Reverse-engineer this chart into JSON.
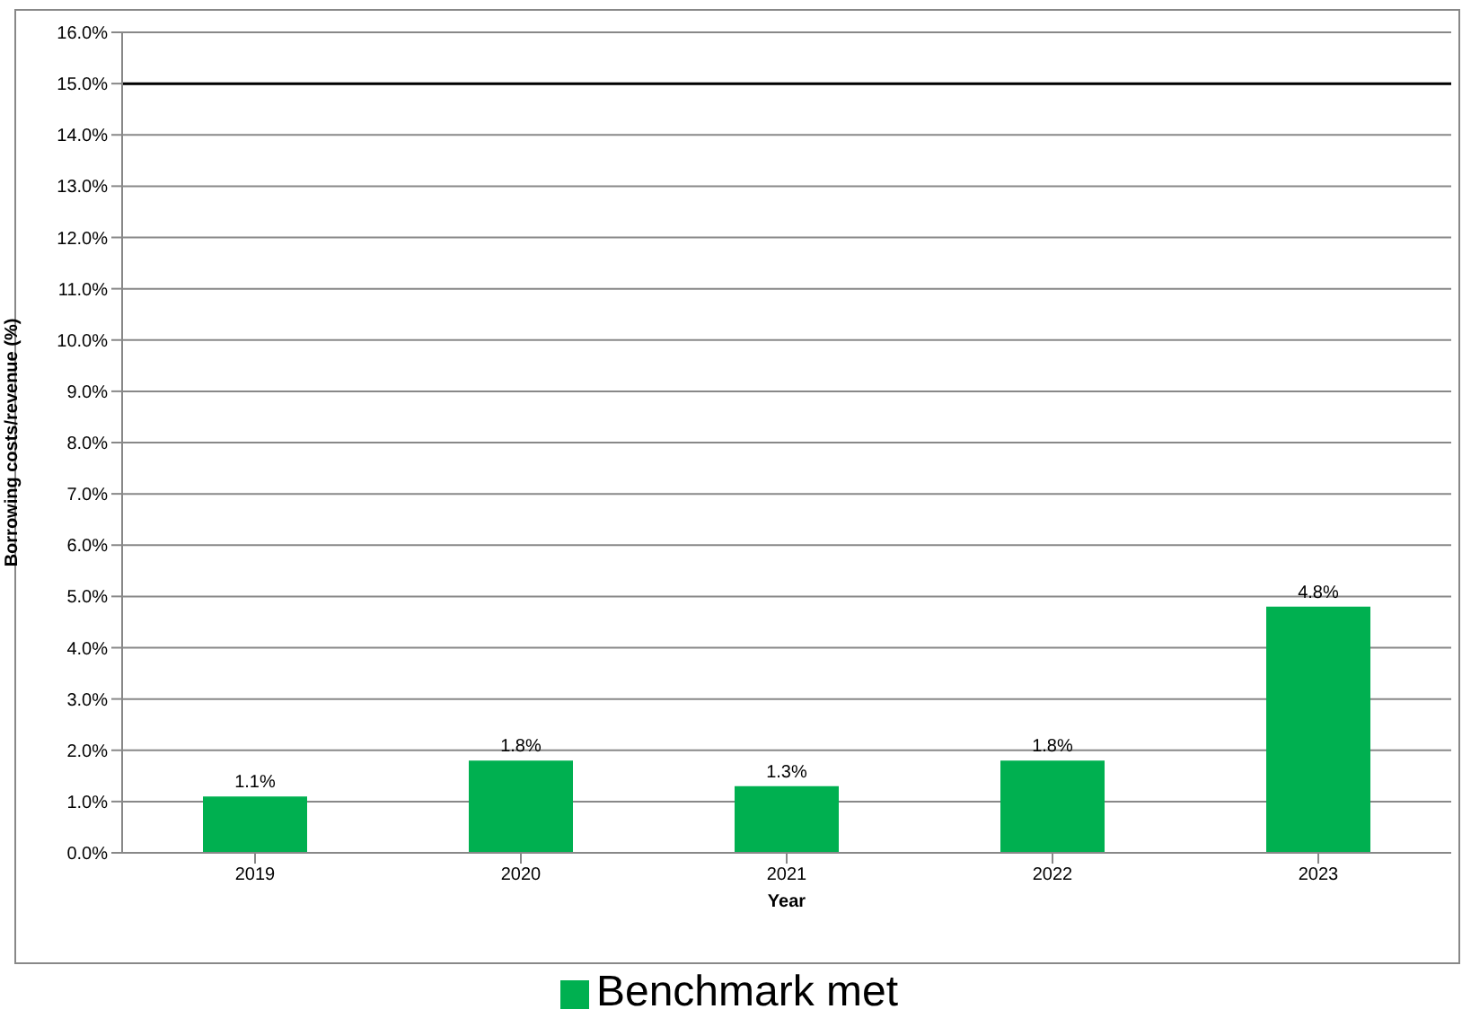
{
  "chart_data": {
    "type": "bar",
    "xlabel": "Year",
    "ylabel": "Borrowing costs/revenue (%)",
    "categories": [
      "2019",
      "2020",
      "2021",
      "2022",
      "2023"
    ],
    "series": [
      {
        "name": "Benchmark met",
        "color": "#00b050",
        "values": [
          1.1,
          1.8,
          1.3,
          1.8,
          4.8
        ],
        "value_labels": [
          "1.1%",
          "1.8%",
          "1.3%",
          "1.8%",
          "4.8%"
        ]
      }
    ],
    "ylim": [
      0,
      16
    ],
    "yticks": [
      {
        "value": 0,
        "label": "0.0%"
      },
      {
        "value": 1,
        "label": "1.0%"
      },
      {
        "value": 2,
        "label": "2.0%"
      },
      {
        "value": 3,
        "label": "3.0%"
      },
      {
        "value": 4,
        "label": "4.0%"
      },
      {
        "value": 5,
        "label": "5.0%"
      },
      {
        "value": 6,
        "label": "6.0%"
      },
      {
        "value": 7,
        "label": "7.0%"
      },
      {
        "value": 8,
        "label": "8.0%"
      },
      {
        "value": 9,
        "label": "9.0%"
      },
      {
        "value": 10,
        "label": "10.0%"
      },
      {
        "value": 11,
        "label": "11.0%"
      },
      {
        "value": 12,
        "label": "12.0%"
      },
      {
        "value": 13,
        "label": "13.0%"
      },
      {
        "value": 14,
        "label": "14.0%"
      },
      {
        "value": 15,
        "label": "15.0%"
      },
      {
        "value": 16,
        "label": "16.0%"
      }
    ],
    "ref_lines": [
      {
        "axis": "y",
        "value": 15,
        "label": null,
        "color": "#000000"
      }
    ],
    "grid": "y",
    "legend": "bottom"
  }
}
